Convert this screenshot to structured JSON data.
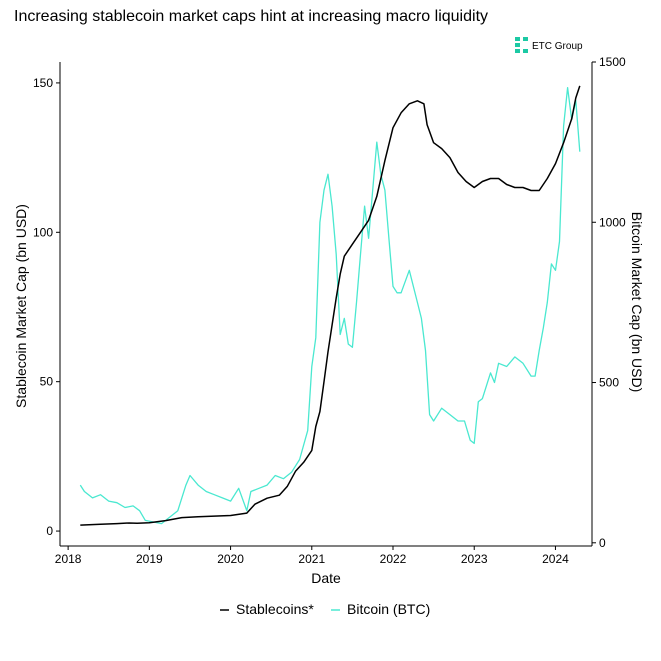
{
  "chart_data": {
    "type": "line",
    "title": "Increasing stablecoin market caps hint at increasing macro liquidity",
    "xlabel": "Date",
    "ylabel_left": "Stablecoin Market Cap (bn USD)",
    "ylabel_right": "Bitcoin Market Cap (bn USD)",
    "xlim": [
      2017.9,
      2024.45
    ],
    "ylim_left": [
      -5,
      157
    ],
    "ylim_right": [
      -10,
      1500
    ],
    "x_ticks": [
      "2018",
      "2019",
      "2020",
      "2021",
      "2022",
      "2023",
      "2024"
    ],
    "y_ticks_left": [
      "0",
      "50",
      "100",
      "150"
    ],
    "y_ticks_right": [
      "0",
      "500",
      "1000",
      "1500"
    ],
    "grid": false,
    "legend_position": "bottom",
    "brand_text": "ETC Group",
    "series": [
      {
        "name": "Stablecoins*",
        "axis": "left",
        "color": "#000000",
        "x": [
          2018.15,
          2018.4,
          2018.6,
          2018.75,
          2018.85,
          2019.0,
          2019.2,
          2019.4,
          2019.6,
          2019.8,
          2020.0,
          2020.2,
          2020.3,
          2020.45,
          2020.6,
          2020.7,
          2020.8,
          2020.9,
          2021.0,
          2021.05,
          2021.1,
          2021.15,
          2021.2,
          2021.3,
          2021.35,
          2021.4,
          2021.5,
          2021.6,
          2021.7,
          2021.8,
          2021.9,
          2022.0,
          2022.1,
          2022.2,
          2022.3,
          2022.38,
          2022.42,
          2022.5,
          2022.6,
          2022.7,
          2022.8,
          2022.9,
          2023.0,
          2023.1,
          2023.2,
          2023.3,
          2023.4,
          2023.5,
          2023.6,
          2023.7,
          2023.8,
          2023.9,
          2024.0,
          2024.1,
          2024.2,
          2024.25,
          2024.3
        ],
        "values": [
          2,
          2.3,
          2.5,
          2.7,
          2.6,
          2.8,
          3.5,
          4.5,
          4.8,
          5,
          5.2,
          6,
          9,
          11,
          12,
          15,
          20,
          23,
          27,
          35,
          40,
          50,
          60,
          78,
          86,
          92,
          96,
          100,
          104,
          112,
          124,
          135,
          140,
          143,
          144,
          143,
          136,
          130,
          128,
          125,
          120,
          117,
          115,
          117,
          118,
          118,
          116,
          115,
          115,
          114,
          114,
          118,
          123,
          130,
          138,
          145,
          149
        ]
      },
      {
        "name": "Bitcoin (BTC)",
        "axis": "right",
        "color": "#4ae8d0",
        "x": [
          2018.15,
          2018.2,
          2018.3,
          2018.4,
          2018.5,
          2018.6,
          2018.7,
          2018.8,
          2018.88,
          2018.95,
          2019.05,
          2019.15,
          2019.25,
          2019.35,
          2019.45,
          2019.5,
          2019.6,
          2019.7,
          2019.8,
          2019.9,
          2020.0,
          2020.1,
          2020.2,
          2020.25,
          2020.35,
          2020.45,
          2020.55,
          2020.65,
          2020.75,
          2020.85,
          2020.95,
          2021.0,
          2021.05,
          2021.1,
          2021.15,
          2021.2,
          2021.25,
          2021.3,
          2021.35,
          2021.4,
          2021.45,
          2021.5,
          2021.55,
          2021.6,
          2021.65,
          2021.7,
          2021.75,
          2021.8,
          2021.85,
          2021.9,
          2021.95,
          2022.0,
          2022.05,
          2022.1,
          2022.2,
          2022.3,
          2022.35,
          2022.4,
          2022.45,
          2022.5,
          2022.6,
          2022.7,
          2022.8,
          2022.88,
          2022.95,
          2023.0,
          2023.05,
          2023.1,
          2023.2,
          2023.25,
          2023.3,
          2023.4,
          2023.5,
          2023.6,
          2023.7,
          2023.75,
          2023.8,
          2023.85,
          2023.9,
          2023.95,
          2024.0,
          2024.05,
          2024.1,
          2024.15,
          2024.2,
          2024.25,
          2024.3
        ],
        "values": [
          180,
          160,
          140,
          150,
          130,
          125,
          110,
          115,
          100,
          70,
          65,
          60,
          80,
          100,
          180,
          210,
          180,
          160,
          150,
          140,
          130,
          170,
          100,
          160,
          170,
          180,
          210,
          200,
          220,
          260,
          350,
          550,
          640,
          1000,
          1100,
          1150,
          1050,
          900,
          650,
          700,
          620,
          610,
          750,
          900,
          1050,
          950,
          1100,
          1250,
          1150,
          1100,
          950,
          800,
          780,
          780,
          850,
          750,
          700,
          600,
          400,
          380,
          420,
          400,
          380,
          380,
          320,
          310,
          440,
          450,
          530,
          500,
          560,
          550,
          580,
          560,
          520,
          520,
          600,
          670,
          750,
          870,
          850,
          940,
          1300,
          1420,
          1320,
          1380,
          1220
        ]
      }
    ]
  }
}
